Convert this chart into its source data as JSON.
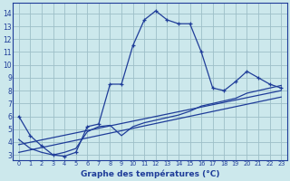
{
  "xlabel": "Graphe des températures (°C)",
  "bg_color": "#cce8ec",
  "grid_color": "#9dbfc8",
  "line_color": "#1f3d99",
  "x_ticks": [
    0,
    1,
    2,
    3,
    4,
    5,
    6,
    7,
    8,
    9,
    10,
    11,
    12,
    13,
    14,
    15,
    16,
    17,
    18,
    19,
    20,
    21,
    22,
    23
  ],
  "y_ticks": [
    3,
    4,
    5,
    6,
    7,
    8,
    9,
    10,
    11,
    12,
    13,
    14
  ],
  "ylim": [
    2.6,
    14.8
  ],
  "xlim": [
    -0.5,
    23.5
  ],
  "main_curve": {
    "x": [
      0,
      1,
      2,
      3,
      4,
      5,
      6,
      7,
      8,
      9,
      10,
      11,
      12,
      13,
      14,
      15,
      16,
      17,
      18,
      19,
      20,
      21,
      22,
      23
    ],
    "y": [
      6.0,
      4.5,
      3.7,
      3.0,
      2.9,
      3.2,
      5.2,
      5.4,
      8.5,
      8.5,
      11.5,
      13.5,
      14.2,
      13.5,
      13.2,
      13.2,
      11.0,
      8.2,
      8.0,
      8.7,
      9.5,
      9.0,
      8.5,
      8.2
    ]
  },
  "trend_lines": [
    {
      "x": [
        0,
        1,
        2,
        3,
        4,
        5,
        6,
        7,
        8,
        9,
        10,
        11,
        12,
        13,
        14,
        15,
        16,
        17,
        18,
        19,
        20,
        21,
        22,
        23
      ],
      "y": [
        4.2,
        3.5,
        3.2,
        3.0,
        3.2,
        3.5,
        4.8,
        5.2,
        5.3,
        4.5,
        5.2,
        5.5,
        5.7,
        5.9,
        6.1,
        6.4,
        6.8,
        7.0,
        7.2,
        7.4,
        7.8,
        8.0,
        8.2,
        8.4
      ]
    },
    {
      "x": [
        0,
        23
      ],
      "y": [
        3.8,
        8.0
      ]
    },
    {
      "x": [
        0,
        23
      ],
      "y": [
        3.2,
        7.5
      ]
    }
  ],
  "xlabel_fontsize": 6.5,
  "tick_fontsize_x": 4.8,
  "tick_fontsize_y": 5.5
}
